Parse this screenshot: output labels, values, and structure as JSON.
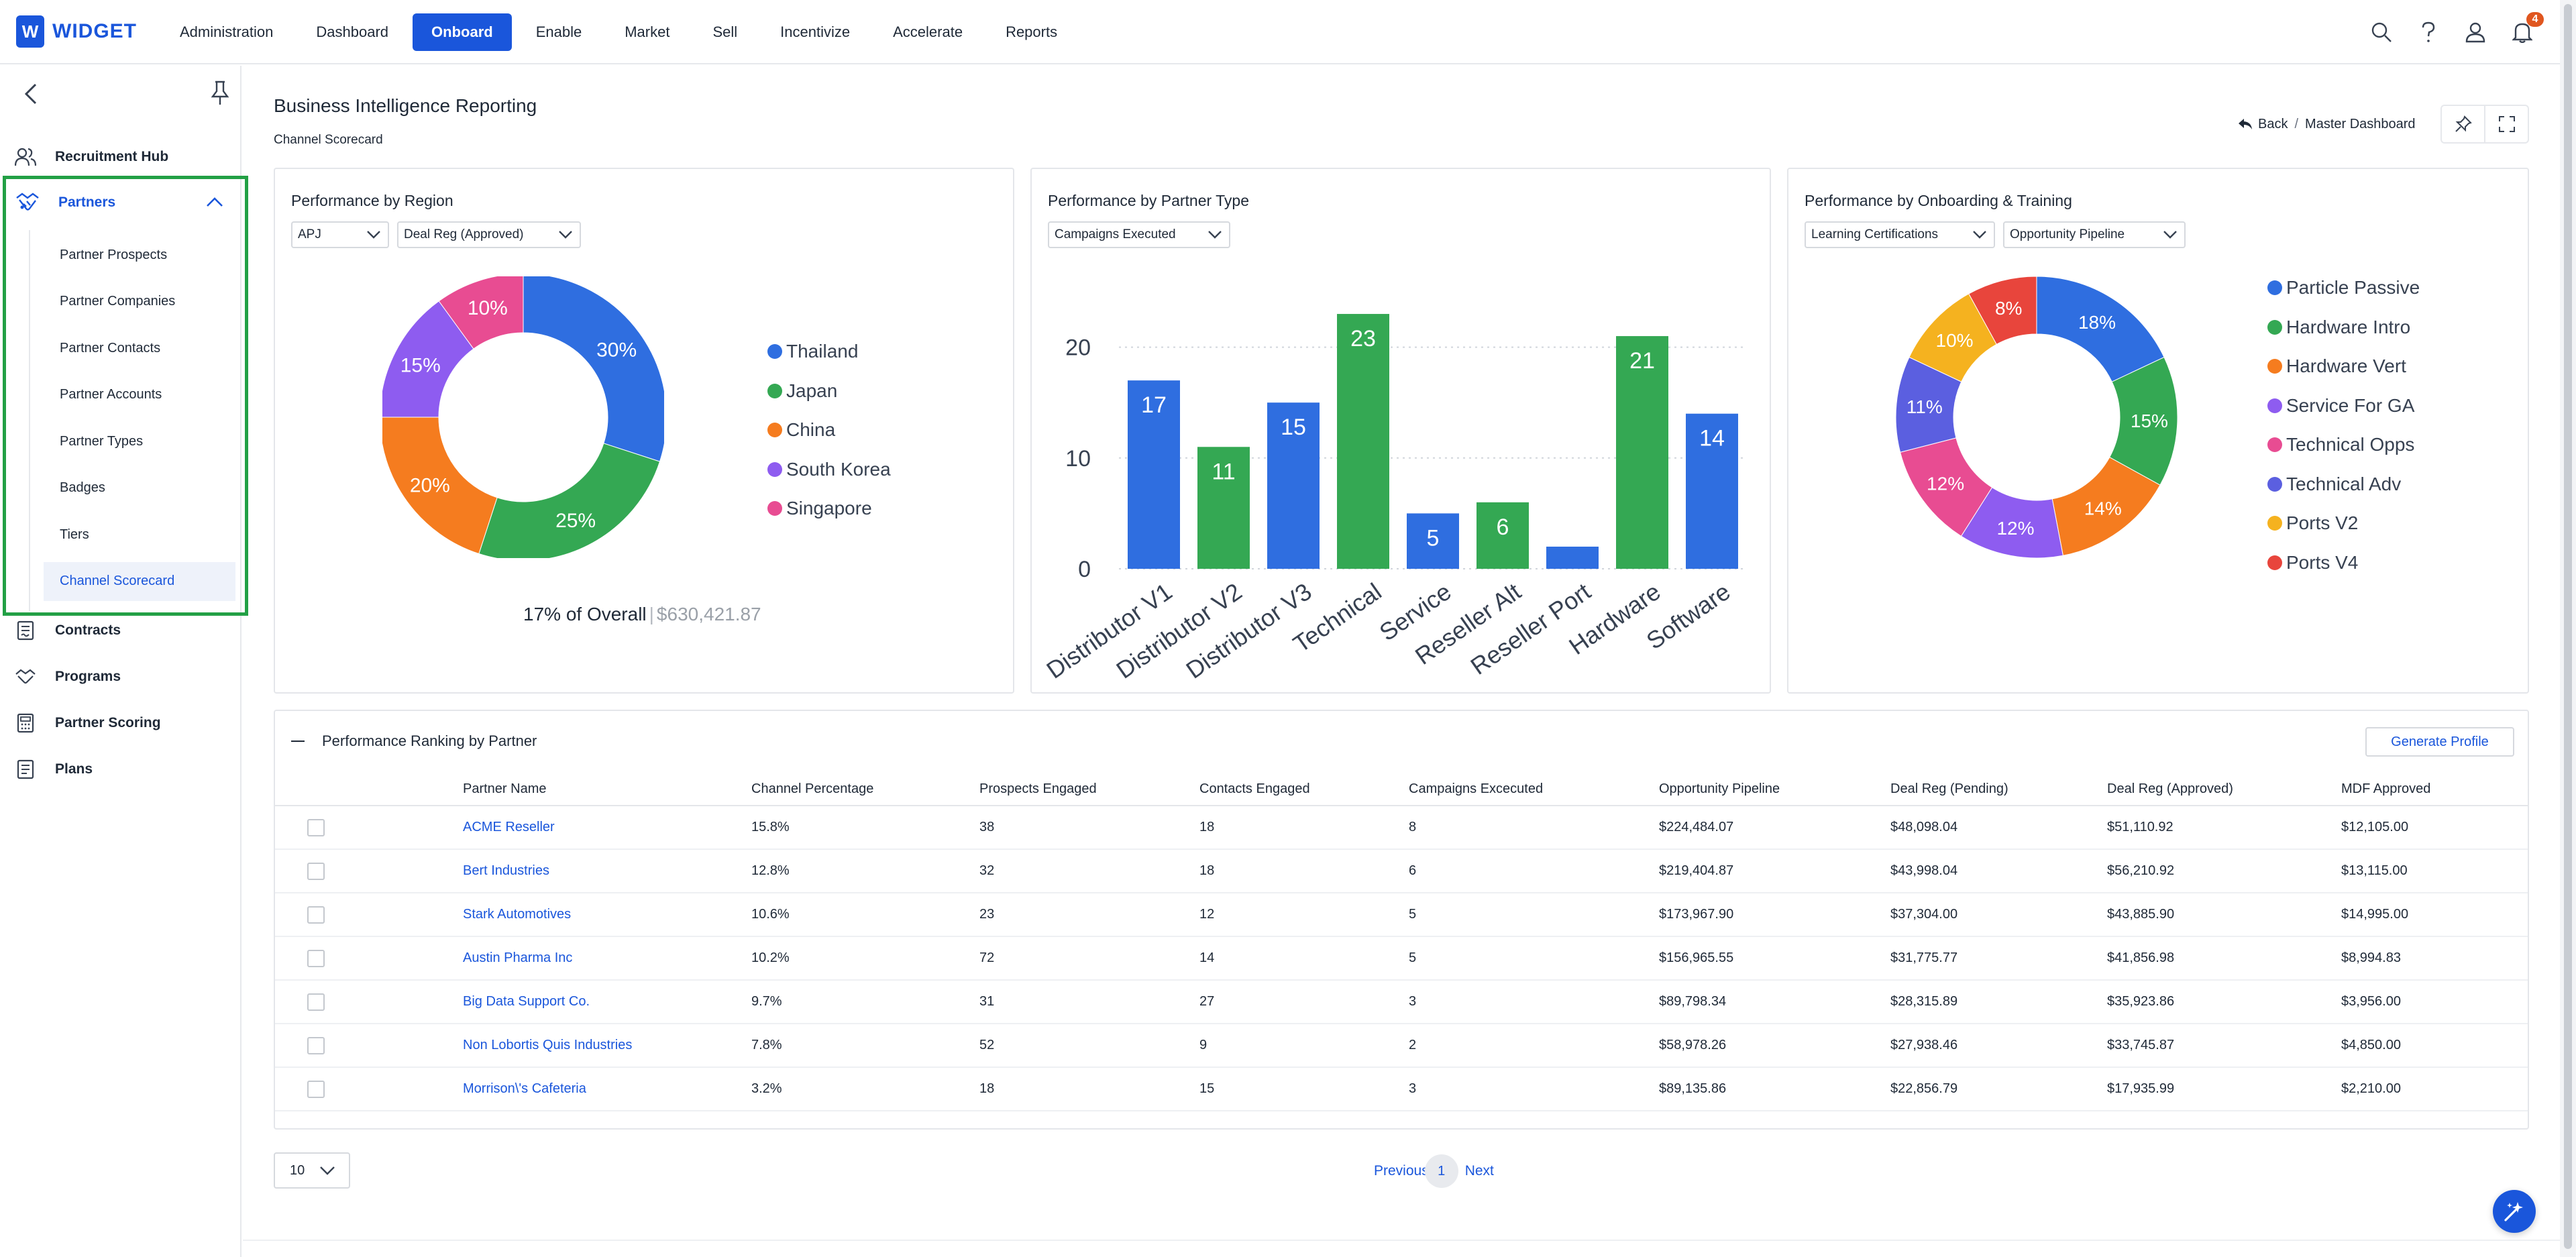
{
  "app": {
    "logo_letter": "W",
    "name": "WIDGET"
  },
  "nav": {
    "items": [
      "Administration",
      "Dashboard",
      "Onboard",
      "Enable",
      "Market",
      "Sell",
      "Incentivize",
      "Accelerate",
      "Reports"
    ],
    "active": "Onboard",
    "notification_count": "4"
  },
  "sidebar": {
    "recruitment": "Recruitment Hub",
    "partners": "Partners",
    "sub_items": [
      "Partner Prospects",
      "Partner Companies",
      "Partner Contacts",
      "Partner Accounts",
      "Partner Types",
      "Badges",
      "Tiers",
      "Channel Scorecard"
    ],
    "active_sub": "Channel Scorecard",
    "after": [
      "Contracts",
      "Programs",
      "Partner Scoring",
      "Plans"
    ]
  },
  "page": {
    "title": "Business Intelligence Reporting",
    "subtitle": "Channel Scorecard",
    "back": "Back",
    "crumb": "Master Dashboard"
  },
  "cards": {
    "region": {
      "title": "Performance by Region",
      "filters": [
        "APJ",
        "Deal Reg (Approved)"
      ],
      "overall_text": "17% of Overall",
      "overall_amount": "$630,421.87"
    },
    "partner_type": {
      "title": "Performance by Partner Type",
      "filters": [
        "Campaigns Executed"
      ]
    },
    "onboarding": {
      "title": "Performance by Onboarding & Training",
      "filters": [
        "Learning Certifications",
        "Opportunity Pipeline"
      ]
    }
  },
  "chart_data": [
    {
      "type": "pie",
      "title": "Performance by Region",
      "labels": [
        "Thailand",
        "Japan",
        "China",
        "South Korea",
        "Singapore"
      ],
      "values": [
        30,
        25,
        20,
        15,
        10
      ],
      "colors": [
        "#2f6ee0",
        "#34a853",
        "#f57c1f",
        "#8e5cf0",
        "#e84c92"
      ],
      "legend": "right"
    },
    {
      "type": "bar",
      "title": "Performance by Partner Type",
      "categories": [
        "Distributor V1",
        "Distributor V2",
        "Distributor V3",
        "Technical",
        "Service",
        "Reseller Alt",
        "Reseller Port",
        "Hardware",
        "Software"
      ],
      "values": [
        17,
        11,
        15,
        23,
        5,
        6,
        2,
        21,
        14
      ],
      "data_labels": [
        "17",
        "11",
        "15",
        "23",
        "5",
        "6",
        "",
        "21",
        "14"
      ],
      "colors": [
        "#2f6ee0",
        "#34a853",
        "#2f6ee0",
        "#34a853",
        "#2f6ee0",
        "#34a853",
        "#2f6ee0",
        "#34a853",
        "#2f6ee0"
      ],
      "yticks": [
        0,
        10,
        20
      ],
      "ylim": [
        0,
        25
      ],
      "grid": true
    },
    {
      "type": "pie",
      "title": "Performance by Onboarding & Training",
      "labels": [
        "Particle Passive",
        "Hardware Intro",
        "Hardware Vert",
        "Service For GA",
        "Technical Opps",
        "Technical Adv",
        "Ports V2",
        "Ports V4"
      ],
      "values": [
        18,
        15,
        14,
        12,
        12,
        11,
        10,
        8
      ],
      "colors": [
        "#2f6ee0",
        "#34a853",
        "#f57c1f",
        "#8e5cf0",
        "#e84c92",
        "#5b5fe0",
        "#f5b21f",
        "#e8453c"
      ],
      "legend": "right"
    }
  ],
  "ranking": {
    "title": "Performance Ranking by Partner",
    "button": "Generate Profile",
    "columns": [
      "Partner Name",
      "Channel Percentage",
      "Prospects Engaged",
      "Contacts Engaged",
      "Campaigns Excecuted",
      "Opportunity Pipeline",
      "Deal Reg (Pending)",
      "Deal Reg (Approved)",
      "MDF Approved"
    ],
    "rows": [
      [
        "ACME Reseller",
        "15.8%",
        "38",
        "18",
        "8",
        "$224,484.07",
        "$48,098.04",
        "$51,110.92",
        "$12,105.00"
      ],
      [
        "Bert Industries",
        "12.8%",
        "32",
        "18",
        "6",
        "$219,404.87",
        "$43,998.04",
        "$56,210.92",
        "$13,115.00"
      ],
      [
        "Stark Automotives",
        "10.6%",
        "23",
        "12",
        "5",
        "$173,967.90",
        "$37,304.00",
        "$43,885.90",
        "$14,995.00"
      ],
      [
        "Austin Pharma Inc",
        "10.2%",
        "72",
        "14",
        "5",
        "$156,965.55",
        "$31,775.77",
        "$41,856.98",
        "$8,994.83"
      ],
      [
        "Big Data Support Co.",
        "9.7%",
        "31",
        "27",
        "3",
        "$89,798.34",
        "$28,315.89",
        "$35,923.86",
        "$3,956.00"
      ],
      [
        "Non Lobortis Quis Industries",
        "7.8%",
        "52",
        "9",
        "2",
        "$58,978.26",
        "$27,938.46",
        "$33,745.87",
        "$4,850.00"
      ],
      [
        "Morrison\\'s Cafeteria",
        "3.2%",
        "18",
        "15",
        "3",
        "$89,135.86",
        "$22,856.79",
        "$17,935.99",
        "$2,210.00"
      ]
    ]
  },
  "pagination": {
    "page_size": "10",
    "prev": "Previous",
    "page": "1",
    "next": "Next"
  },
  "colors": {
    "accent": "#1a56db",
    "highlight_border": "#22a045",
    "notif": "#e0561f"
  }
}
